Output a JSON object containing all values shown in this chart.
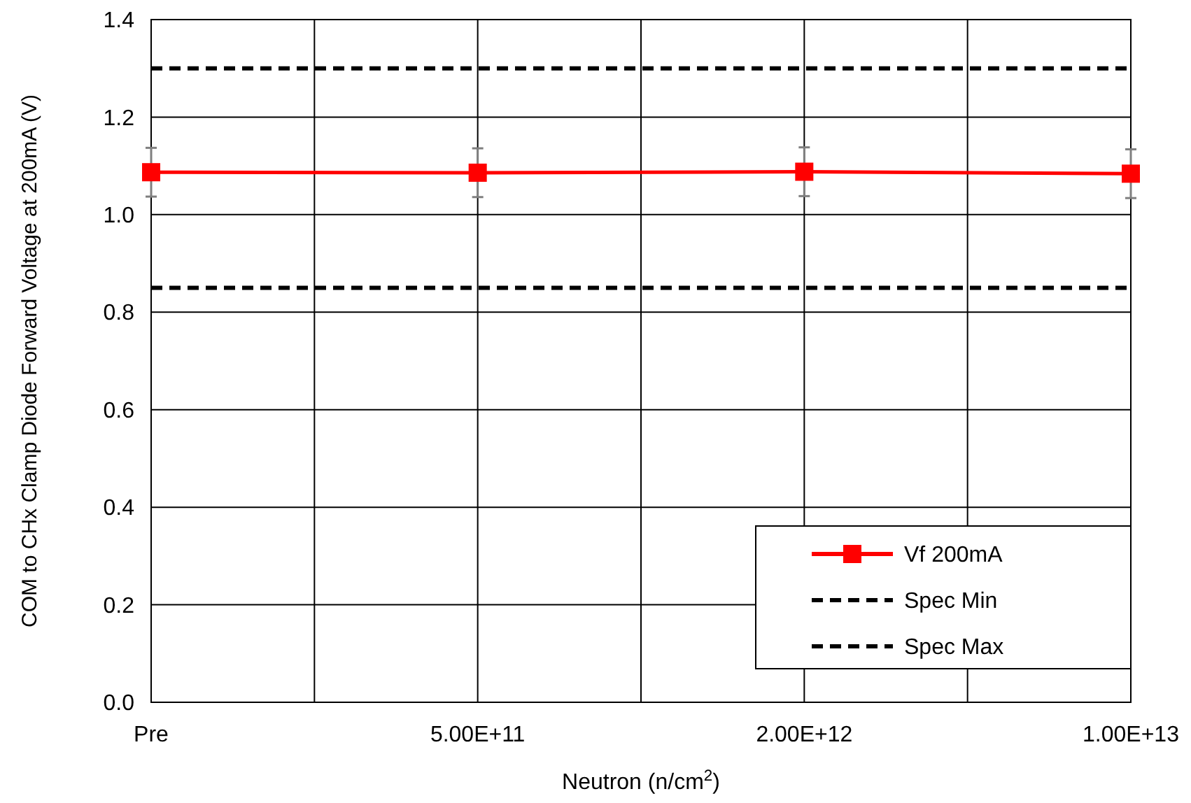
{
  "chart_data": {
    "type": "line",
    "xlabel": "Neutron (n/cm$^{2}$)",
    "ylabel": "COM to CHx Clamp Diode Forward Voltage at 200mA (V)",
    "categories": [
      "Pre",
      null,
      "5.00E+11",
      null,
      "2.00E+12",
      null,
      "1.00E+13"
    ],
    "ylim": [
      0,
      1.4
    ],
    "yticks": [
      {
        "value": 0,
        "label": "0.0"
      },
      {
        "value": 0.2,
        "label": "0.2"
      },
      {
        "value": 0.4,
        "label": "0.4"
      },
      {
        "value": 0.6,
        "label": "0.6"
      },
      {
        "value": 0.8,
        "label": "0.8"
      },
      {
        "value": 1,
        "label": "1.0"
      },
      {
        "value": 1.2,
        "label": "1.2"
      },
      {
        "value": 1.4,
        "label": "1.4"
      }
    ],
    "grid": true,
    "legend": "bottom right",
    "series": [
      {
        "name": "Vf 200mA",
        "color": "#ff0000",
        "marker": "square",
        "line_style": "solid",
        "values": [
          1.087,
          null,
          1.086,
          null,
          1.088,
          null,
          1.084
        ],
        "errors": [
          0.05,
          null,
          0.05,
          null,
          0.05,
          null,
          0.05
        ]
      },
      {
        "name": "Spec Min",
        "color": "#000000",
        "marker": "none",
        "line_style": "dashed",
        "values": [
          0.85,
          0.85,
          0.85,
          0.85,
          0.85,
          0.85,
          0.85
        ]
      },
      {
        "name": "Spec Max",
        "color": "#000000",
        "marker": "none",
        "line_style": "dashed",
        "values": [
          1.3,
          1.3,
          1.3,
          1.3,
          1.3,
          1.3,
          1.3
        ]
      }
    ]
  }
}
